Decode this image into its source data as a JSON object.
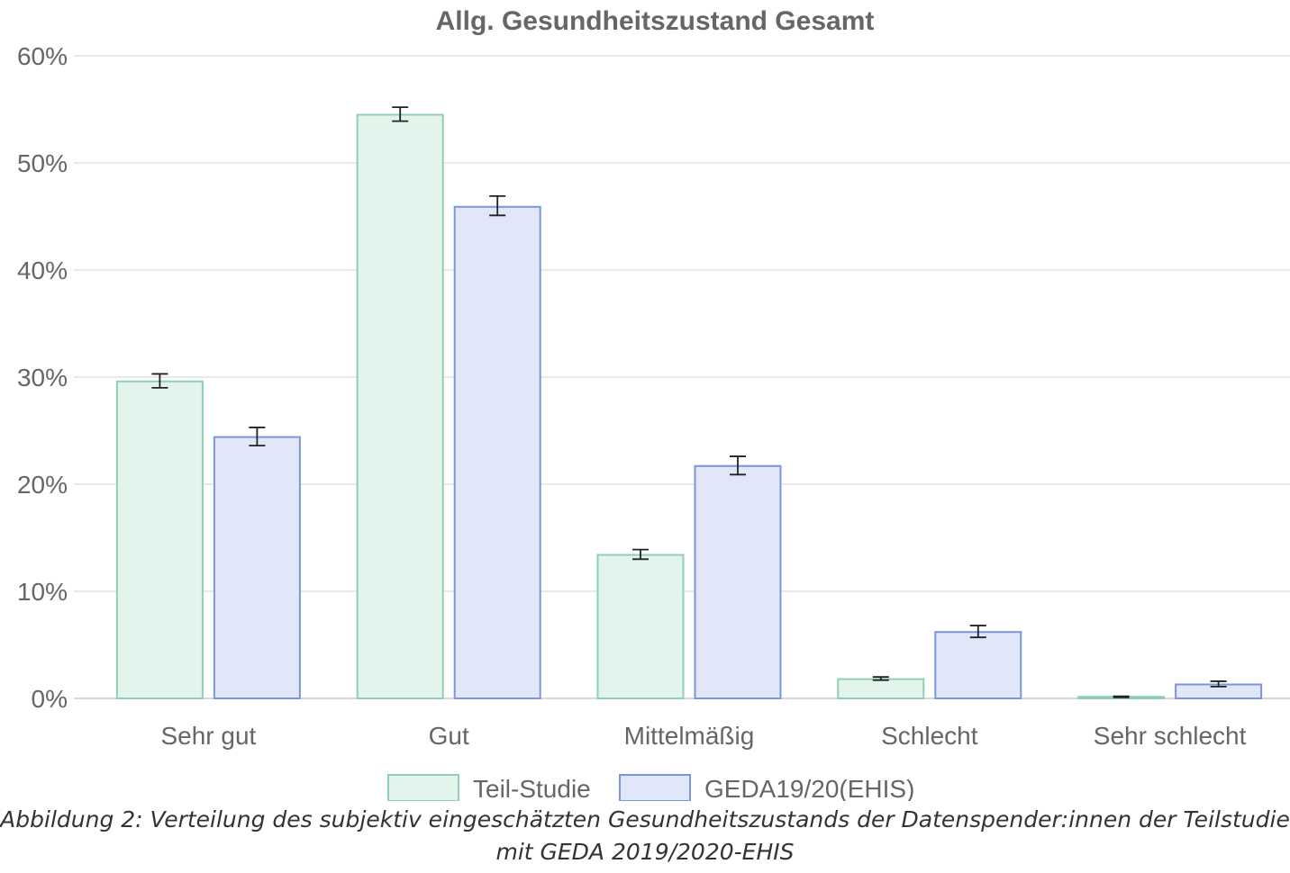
{
  "caption": "Abbildung 2: Verteilung des subjektiv eingeschätzten Gesundheitszustands der Datenspender:innen der Teilstudie mit GEDA 2019/2020-EHIS",
  "chart_data": {
    "type": "bar",
    "title": "Allg. Gesundheitszustand Gesamt",
    "xlabel": "",
    "ylabel": "",
    "ylim": [
      0,
      60
    ],
    "yticks": [
      0,
      10,
      20,
      30,
      40,
      50,
      60
    ],
    "ytick_labels": [
      "0%",
      "10%",
      "20%",
      "30%",
      "40%",
      "50%",
      "60%"
    ],
    "grid": true,
    "legend_position": "bottom",
    "categories": [
      "Sehr gut",
      "Gut",
      "Mittelmäßig",
      "Schlecht",
      "Sehr schlecht"
    ],
    "series": [
      {
        "name": "Teil-Studie",
        "fill": "#e3f4ec",
        "stroke": "#8fd0b3",
        "values": [
          29.6,
          54.5,
          13.4,
          1.8,
          0.15
        ],
        "error_low": [
          29.0,
          53.9,
          13.0,
          1.7,
          0.1
        ],
        "error_high": [
          30.3,
          55.2,
          13.9,
          2.0,
          0.2
        ]
      },
      {
        "name": "GEDA19/20(EHIS)",
        "fill": "#e1e7f9",
        "stroke": "#7b96dc",
        "values": [
          24.4,
          45.9,
          21.7,
          6.2,
          1.3
        ],
        "error_low": [
          23.6,
          45.1,
          20.9,
          5.7,
          1.1
        ],
        "error_high": [
          25.3,
          46.9,
          22.6,
          6.8,
          1.6
        ]
      }
    ]
  }
}
